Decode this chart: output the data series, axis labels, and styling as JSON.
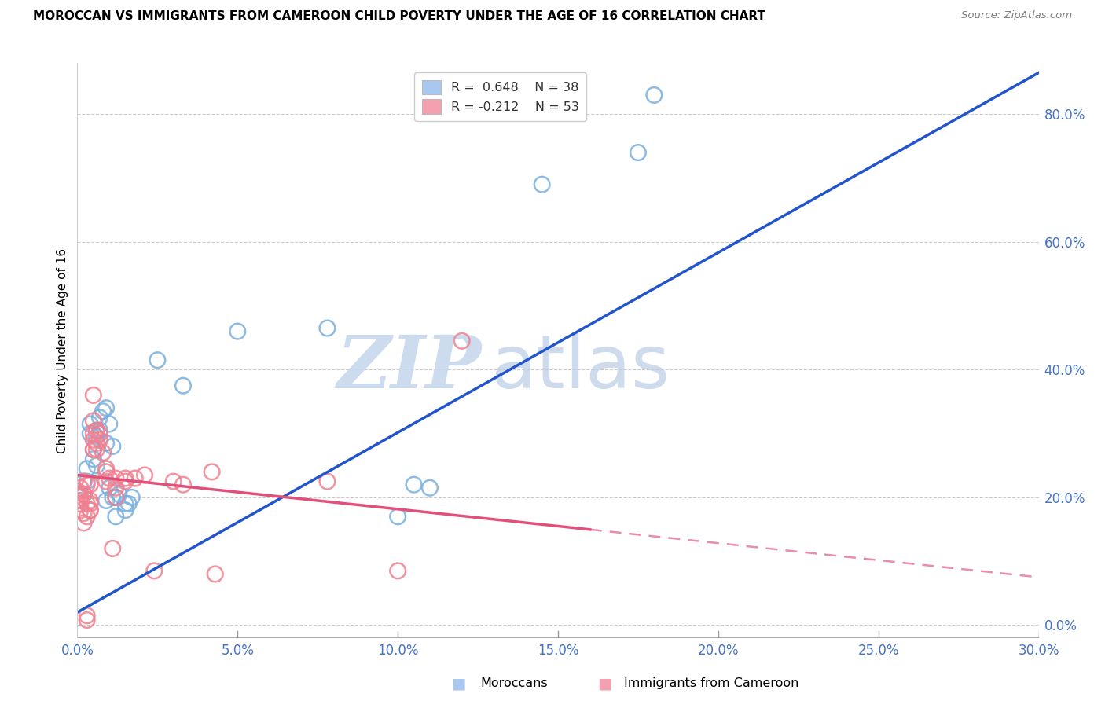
{
  "title": "MOROCCAN VS IMMIGRANTS FROM CAMEROON CHILD POVERTY UNDER THE AGE OF 16 CORRELATION CHART",
  "source": "Source: ZipAtlas.com",
  "xlabel_ticks": [
    "0.0%",
    "5.0%",
    "10.0%",
    "15.0%",
    "20.0%",
    "25.0%",
    "30.0%"
  ],
  "ylabel_label": "Child Poverty Under the Age of 16",
  "ylabel_ticks_right": [
    "0.0%",
    "20.0%",
    "40.0%",
    "60.0%",
    "80.0%"
  ],
  "xlim": [
    0.0,
    0.3
  ],
  "ylim": [
    -0.02,
    0.88
  ],
  "legend_label1": "R =  0.648    N = 38",
  "legend_label2": "R = -0.212    N = 53",
  "legend_color1": "#a8c8f0",
  "legend_color2": "#f4a0b0",
  "footer_labels": [
    "Moroccans",
    "Immigrants from Cameroon"
  ],
  "moroccan_color": "#7ab0e0",
  "cameroon_color": "#f08090",
  "moroccan_line_color": "#2255cc",
  "cameroon_line_color": "#e0507a",
  "watermark_zip": "ZIP",
  "watermark_atlas": "atlas",
  "moroccan_scatter": [
    [
      0.001,
      0.195
    ],
    [
      0.002,
      0.205
    ],
    [
      0.002,
      0.225
    ],
    [
      0.003,
      0.245
    ],
    [
      0.003,
      0.225
    ],
    [
      0.004,
      0.315
    ],
    [
      0.004,
      0.3
    ],
    [
      0.005,
      0.275
    ],
    [
      0.005,
      0.26
    ],
    [
      0.006,
      0.295
    ],
    [
      0.006,
      0.25
    ],
    [
      0.007,
      0.325
    ],
    [
      0.007,
      0.305
    ],
    [
      0.008,
      0.335
    ],
    [
      0.009,
      0.285
    ],
    [
      0.009,
      0.34
    ],
    [
      0.009,
      0.195
    ],
    [
      0.01,
      0.215
    ],
    [
      0.01,
      0.315
    ],
    [
      0.011,
      0.28
    ],
    [
      0.011,
      0.2
    ],
    [
      0.012,
      0.2
    ],
    [
      0.012,
      0.17
    ],
    [
      0.013,
      0.205
    ],
    [
      0.015,
      0.19
    ],
    [
      0.015,
      0.18
    ],
    [
      0.016,
      0.19
    ],
    [
      0.017,
      0.2
    ],
    [
      0.025,
      0.415
    ],
    [
      0.033,
      0.375
    ],
    [
      0.05,
      0.46
    ],
    [
      0.078,
      0.465
    ],
    [
      0.1,
      0.17
    ],
    [
      0.105,
      0.22
    ],
    [
      0.11,
      0.215
    ],
    [
      0.145,
      0.69
    ],
    [
      0.175,
      0.74
    ],
    [
      0.18,
      0.83
    ]
  ],
  "cameroon_scatter": [
    [
      0.0,
      0.195
    ],
    [
      0.0,
      0.21
    ],
    [
      0.001,
      0.215
    ],
    [
      0.001,
      0.2
    ],
    [
      0.001,
      0.19
    ],
    [
      0.001,
      0.18
    ],
    [
      0.002,
      0.205
    ],
    [
      0.002,
      0.175
    ],
    [
      0.002,
      0.16
    ],
    [
      0.002,
      0.225
    ],
    [
      0.002,
      0.205
    ],
    [
      0.003,
      0.19
    ],
    [
      0.003,
      0.17
    ],
    [
      0.003,
      0.015
    ],
    [
      0.003,
      0.008
    ],
    [
      0.003,
      0.22
    ],
    [
      0.004,
      0.19
    ],
    [
      0.004,
      0.18
    ],
    [
      0.004,
      0.22
    ],
    [
      0.004,
      0.195
    ],
    [
      0.004,
      0.18
    ],
    [
      0.005,
      0.36
    ],
    [
      0.005,
      0.32
    ],
    [
      0.005,
      0.3
    ],
    [
      0.005,
      0.29
    ],
    [
      0.005,
      0.275
    ],
    [
      0.006,
      0.305
    ],
    [
      0.006,
      0.285
    ],
    [
      0.006,
      0.305
    ],
    [
      0.006,
      0.275
    ],
    [
      0.007,
      0.3
    ],
    [
      0.007,
      0.29
    ],
    [
      0.008,
      0.27
    ],
    [
      0.009,
      0.24
    ],
    [
      0.009,
      0.225
    ],
    [
      0.009,
      0.245
    ],
    [
      0.01,
      0.23
    ],
    [
      0.011,
      0.12
    ],
    [
      0.012,
      0.23
    ],
    [
      0.012,
      0.215
    ],
    [
      0.012,
      0.2
    ],
    [
      0.015,
      0.23
    ],
    [
      0.015,
      0.225
    ],
    [
      0.018,
      0.23
    ],
    [
      0.021,
      0.235
    ],
    [
      0.024,
      0.085
    ],
    [
      0.03,
      0.225
    ],
    [
      0.033,
      0.22
    ],
    [
      0.042,
      0.24
    ],
    [
      0.043,
      0.08
    ],
    [
      0.078,
      0.225
    ],
    [
      0.1,
      0.085
    ],
    [
      0.12,
      0.445
    ]
  ],
  "moroccan_line": [
    [
      0.0,
      0.02
    ],
    [
      0.3,
      0.865
    ]
  ],
  "cameroon_line": [
    [
      0.0,
      0.235
    ],
    [
      0.3,
      0.075
    ]
  ],
  "cameroon_line_solid_end": 0.16,
  "background_color": "#ffffff",
  "grid_color": "#cccccc"
}
